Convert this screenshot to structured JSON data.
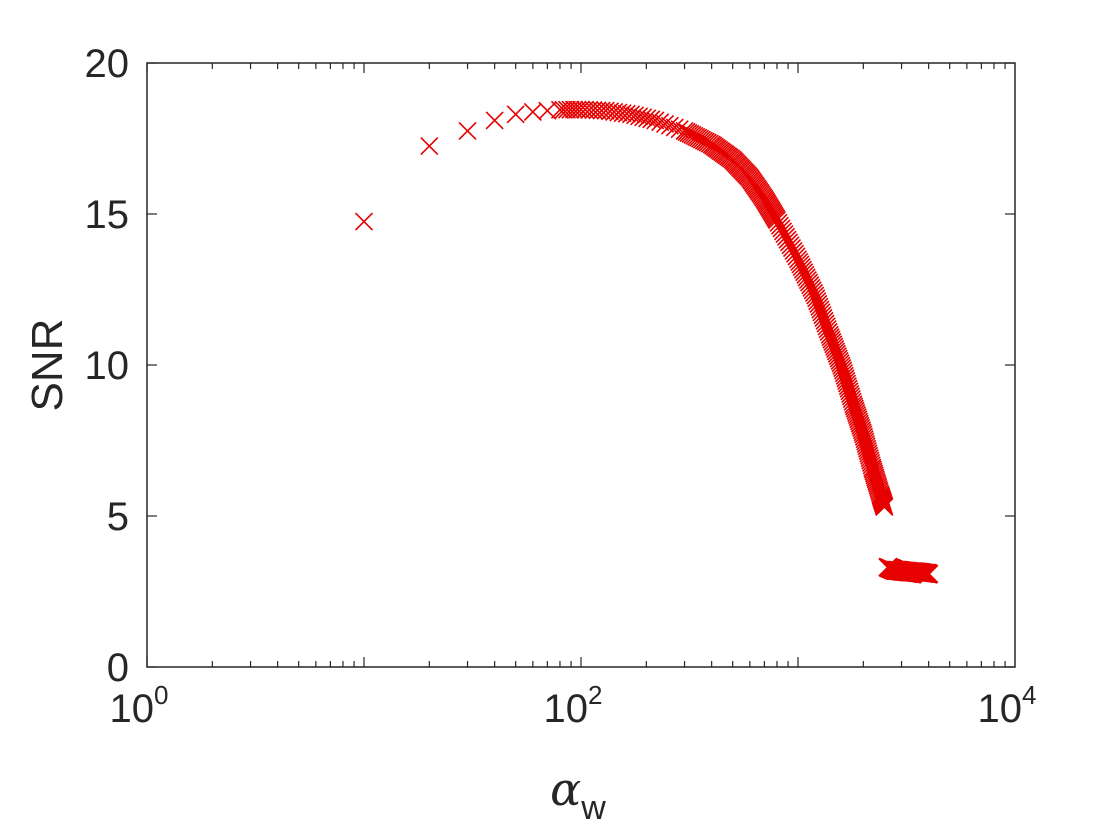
{
  "chart_data": {
    "type": "scatter",
    "title": "",
    "xlabel": "α",
    "xlabel_subscript": "w",
    "ylabel": "SNR",
    "xscale": "log",
    "xlim": [
      1,
      10000
    ],
    "ylim": [
      0,
      20
    ],
    "grid": false,
    "legend": "none",
    "marker": "x",
    "color": "#e60000",
    "x_ticks": [
      {
        "value": 1,
        "base": "10",
        "exp": "0"
      },
      {
        "value": 100,
        "base": "10",
        "exp": "2"
      },
      {
        "value": 10000,
        "base": "10",
        "exp": "4"
      }
    ],
    "y_ticks": [
      {
        "value": 0,
        "label": "0"
      },
      {
        "value": 5,
        "label": "5"
      },
      {
        "value": 10,
        "label": "10"
      },
      {
        "value": 15,
        "label": "15"
      },
      {
        "value": 20,
        "label": "20"
      }
    ],
    "curve": [
      [
        10,
        14.75
      ],
      [
        20,
        17.25
      ],
      [
        30,
        17.75
      ],
      [
        40,
        18.1
      ],
      [
        50,
        18.3
      ],
      [
        60,
        18.38
      ],
      [
        70,
        18.42
      ],
      [
        80,
        18.45
      ],
      [
        100,
        18.46
      ],
      [
        130,
        18.42
      ],
      [
        170,
        18.3
      ],
      [
        220,
        18.1
      ],
      [
        300,
        17.75
      ],
      [
        400,
        17.3
      ],
      [
        500,
        16.8
      ],
      [
        600,
        16.2
      ],
      [
        700,
        15.5
      ],
      [
        800,
        14.8
      ],
      [
        1000,
        13.5
      ],
      [
        1200,
        12.3
      ],
      [
        1400,
        11.0
      ],
      [
        1600,
        9.9
      ],
      [
        1800,
        8.7
      ],
      [
        2000,
        7.7
      ],
      [
        2200,
        6.6
      ],
      [
        2400,
        5.7
      ],
      [
        2500,
        5.3
      ]
    ],
    "tail": [
      [
        2600,
        3.3
      ],
      [
        2700,
        3.25
      ],
      [
        2800,
        3.2
      ],
      [
        2900,
        3.2
      ],
      [
        3000,
        3.18
      ],
      [
        3100,
        3.17
      ],
      [
        3200,
        3.16
      ],
      [
        3300,
        3.15
      ],
      [
        3400,
        3.15
      ],
      [
        3500,
        3.14
      ],
      [
        3600,
        3.13
      ],
      [
        3700,
        3.12
      ],
      [
        3800,
        3.1
      ],
      [
        3900,
        3.1
      ],
      [
        4000,
        3.08
      ]
    ]
  }
}
